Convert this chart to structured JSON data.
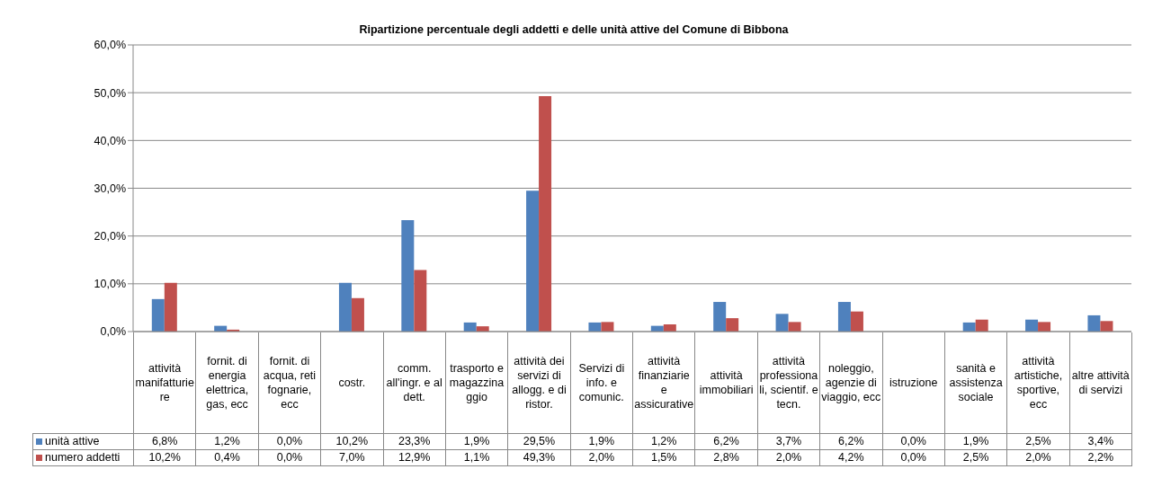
{
  "chart_data": {
    "type": "bar",
    "title": "Ripartizione percentuale degli addetti e delle unità attive del Comune di Bibbona",
    "categories": [
      "attività manifatturiere",
      "fornit. di energia elettrica, gas, ecc",
      "fornit. di acqua, reti fognarie, ecc",
      "costr.",
      "comm. all'ingr. e al dett.",
      "trasporto e magazzinaggio",
      "attività dei servizi di allogg. e di ristor.",
      "Servizi di info. e comunic.",
      "attività finanziarie e assicurative",
      "attività immobiliari",
      "attività professionali, scientif. e tecn.",
      "noleggio, agenzie di viaggio, ecc",
      "istruzione",
      "sanità e assistenza sociale",
      "attività artistiche, sportive, ecc",
      "altre attività di servizi"
    ],
    "series": [
      {
        "name": "unità attive",
        "color": "#4f81bd",
        "values": [
          6.8,
          1.2,
          0.0,
          10.2,
          23.3,
          1.9,
          29.5,
          1.9,
          1.2,
          6.2,
          3.7,
          6.2,
          0.0,
          1.9,
          2.5,
          3.4
        ],
        "value_labels": [
          "6,8%",
          "1,2%",
          "0,0%",
          "10,2%",
          "23,3%",
          "1,9%",
          "29,5%",
          "1,9%",
          "1,2%",
          "6,2%",
          "3,7%",
          "6,2%",
          "0,0%",
          "1,9%",
          "2,5%",
          "3,4%"
        ]
      },
      {
        "name": "numero addetti",
        "color": "#c0504d",
        "values": [
          10.2,
          0.4,
          0.0,
          7.0,
          12.9,
          1.1,
          49.3,
          2.0,
          1.5,
          2.8,
          2.0,
          4.2,
          0.0,
          2.5,
          2.0,
          2.2
        ],
        "value_labels": [
          "10,2%",
          "0,4%",
          "0,0%",
          "7,0%",
          "12,9%",
          "1,1%",
          "49,3%",
          "2,0%",
          "1,5%",
          "2,8%",
          "2,0%",
          "4,2%",
          "0,0%",
          "2,5%",
          "2,0%",
          "2,2%"
        ]
      }
    ],
    "ylim": [
      0,
      60
    ],
    "yticks": [
      {
        "value": 0,
        "label": "0,0%"
      },
      {
        "value": 10,
        "label": "10,0%"
      },
      {
        "value": 20,
        "label": "20,0%"
      },
      {
        "value": 30,
        "label": "30,0%"
      },
      {
        "value": 40,
        "label": "40,0%"
      },
      {
        "value": 50,
        "label": "50,0%"
      },
      {
        "value": 60,
        "label": "60,0%"
      }
    ],
    "grid": "y",
    "legend": "bottom"
  }
}
